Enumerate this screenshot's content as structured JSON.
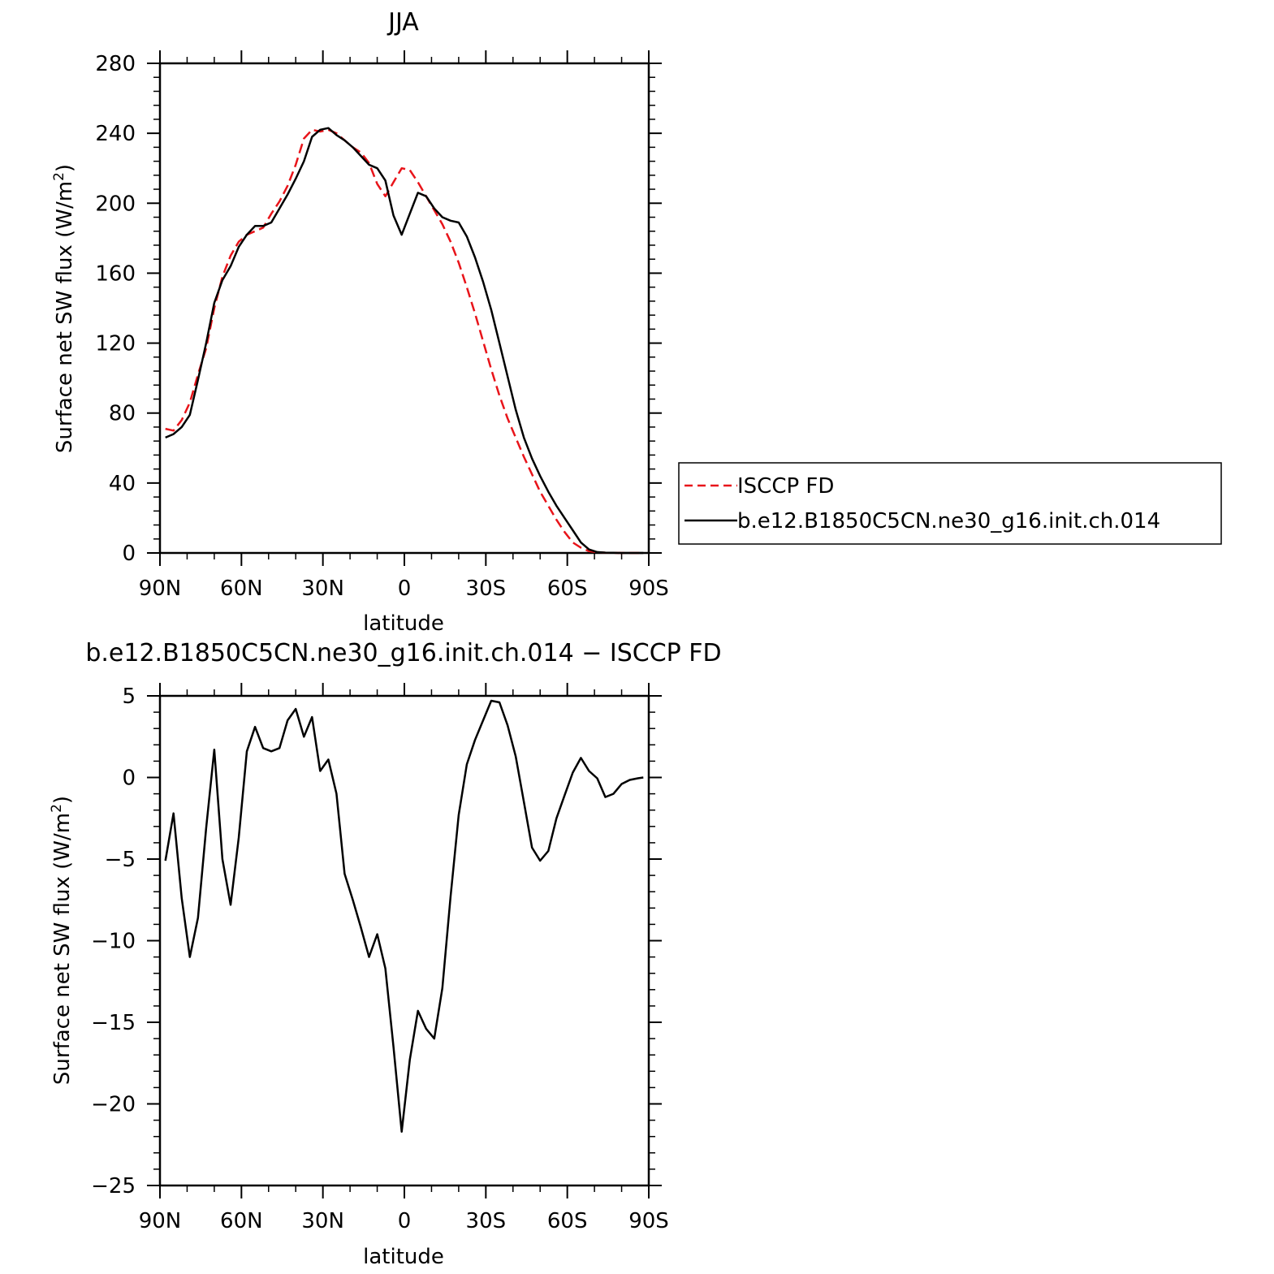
{
  "chart_data": [
    {
      "type": "line",
      "title": "JJA",
      "xlabel": "latitude",
      "ylabel_main": "Surface net SW flux (W/m",
      "ylabel_sup": "2",
      "ylabel_close": ")",
      "xlim": [
        90,
        -90
      ],
      "ylim": [
        0,
        280
      ],
      "xticks": [
        {
          "value": 90,
          "label": "90N"
        },
        {
          "value": 60,
          "label": "60N"
        },
        {
          "value": 30,
          "label": "30N"
        },
        {
          "value": 0,
          "label": "0"
        },
        {
          "value": -30,
          "label": "30S"
        },
        {
          "value": -60,
          "label": "60S"
        },
        {
          "value": -90,
          "label": "90S"
        }
      ],
      "yticks": [
        0,
        40,
        80,
        120,
        160,
        200,
        240,
        280
      ],
      "legend_position": "right",
      "series": [
        {
          "name": "ISCCP FD",
          "color": "#e8141a",
          "style": "dashed",
          "x": [
            88,
            85,
            82,
            79,
            76,
            73,
            70,
            67,
            64,
            61,
            58,
            55,
            52,
            49,
            46,
            43,
            40,
            37,
            34,
            31,
            28,
            25,
            22,
            19,
            16,
            13,
            10,
            7,
            4,
            1,
            -2,
            -5,
            -8,
            -11,
            -14,
            -17,
            -20,
            -23,
            -26,
            -29,
            -32,
            -35,
            -38,
            -41,
            -44,
            -47,
            -50,
            -53,
            -56,
            -59,
            -62,
            -65,
            -68,
            -71,
            -74,
            -77,
            -80,
            -83,
            -86,
            -88
          ],
          "y": [
            71,
            70,
            76,
            86,
            102,
            117,
            140,
            158,
            170,
            178,
            182,
            184,
            186,
            194,
            201,
            210,
            222,
            237,
            242,
            241,
            242,
            240,
            236,
            232,
            229,
            223,
            211,
            204,
            212,
            220,
            219,
            212,
            204,
            196,
            188,
            178,
            166,
            152,
            137,
            121,
            105,
            90,
            77,
            66,
            55,
            45,
            35,
            27,
            19,
            12,
            6,
            3,
            1,
            0.4,
            0.2,
            0.1,
            0,
            0,
            0,
            0
          ]
        },
        {
          "name": "b.e12.B1850C5CN.ne30_g16.init.ch.014",
          "color": "#000000",
          "style": "solid",
          "x": [
            88,
            85,
            82,
            79,
            76,
            73,
            70,
            67,
            64,
            61,
            58,
            55,
            52,
            49,
            46,
            43,
            40,
            37,
            34,
            31,
            28,
            25,
            22,
            19,
            16,
            13,
            10,
            7,
            4,
            1,
            -2,
            -5,
            -8,
            -11,
            -14,
            -17,
            -20,
            -23,
            -26,
            -29,
            -32,
            -35,
            -38,
            -41,
            -44,
            -47,
            -50,
            -53,
            -56,
            -59,
            -62,
            -65,
            -68,
            -71,
            -74,
            -77,
            -80,
            -83,
            -86,
            -88
          ],
          "y": [
            66,
            68,
            72,
            79,
            99,
            120,
            143,
            156,
            164,
            175,
            182,
            187,
            187,
            189,
            197,
            205,
            214,
            224,
            238,
            242,
            243,
            239,
            236,
            232,
            227,
            222,
            220,
            213,
            193,
            182,
            194,
            206,
            204,
            197,
            192,
            190,
            189,
            181,
            169,
            155,
            139,
            120,
            101,
            82,
            66,
            54,
            44,
            35,
            27,
            20,
            13,
            6,
            2,
            0.5,
            0.2,
            0.1,
            0,
            0,
            0,
            0
          ]
        }
      ]
    },
    {
      "type": "line",
      "title": "b.e12.B1850C5CN.ne30_g16.init.ch.014 − ISCCP FD",
      "xlabel": "latitude",
      "ylabel_main": "Surface net SW flux (W/m",
      "ylabel_sup": "2",
      "ylabel_close": ")",
      "xlim": [
        90,
        -90
      ],
      "ylim": [
        -25,
        5
      ],
      "xticks": [
        {
          "value": 90,
          "label": "90N"
        },
        {
          "value": 60,
          "label": "60N"
        },
        {
          "value": 30,
          "label": "30N"
        },
        {
          "value": 0,
          "label": "0"
        },
        {
          "value": -30,
          "label": "30S"
        },
        {
          "value": -60,
          "label": "60S"
        },
        {
          "value": -90,
          "label": "90S"
        }
      ],
      "yticks": [
        {
          "value": 5,
          "label": "5"
        },
        {
          "value": 0,
          "label": "0"
        },
        {
          "value": -5,
          "label": "−5"
        },
        {
          "value": -10,
          "label": "−10"
        },
        {
          "value": -15,
          "label": "−15"
        },
        {
          "value": -20,
          "label": "−20"
        },
        {
          "value": -25,
          "label": "−25"
        }
      ],
      "series": [
        {
          "color": "#000000",
          "style": "solid",
          "x": [
            88,
            85,
            82,
            79,
            76,
            73,
            70,
            67,
            64,
            61,
            58,
            55,
            52,
            49,
            46,
            43,
            40,
            37,
            34,
            31,
            28,
            25,
            22,
            19,
            16,
            13,
            10,
            7,
            4,
            1,
            -2,
            -5,
            -8,
            -11,
            -14,
            -17,
            -20,
            -23,
            -26,
            -29,
            -32,
            -35,
            -38,
            -41,
            -44,
            -47,
            -50,
            -53,
            -56,
            -59,
            -62,
            -65,
            -68,
            -71,
            -74,
            -77,
            -80,
            -83,
            -86,
            -88
          ],
          "y": [
            -5.1,
            -2.2,
            -7.4,
            -11.0,
            -8.6,
            -3.1,
            1.7,
            -5.0,
            -7.8,
            -3.7,
            1.6,
            3.1,
            1.8,
            1.6,
            1.8,
            3.5,
            4.2,
            2.5,
            3.7,
            0.4,
            1.1,
            -1.0,
            -5.9,
            -7.5,
            -9.2,
            -11.0,
            -9.6,
            -11.7,
            -16.5,
            -21.7,
            -17.3,
            -14.3,
            -15.4,
            -16.0,
            -12.9,
            -7.3,
            -2.3,
            0.8,
            2.3,
            3.5,
            4.7,
            4.6,
            3.2,
            1.3,
            -1.5,
            -4.3,
            -5.1,
            -4.5,
            -2.5,
            -1.1,
            0.3,
            1.2,
            0.4,
            -0.05,
            -1.2,
            -1.0,
            -0.4,
            -0.15,
            -0.05,
            0
          ]
        }
      ]
    }
  ],
  "legend": {
    "items": [
      "ISCCP FD",
      "b.e12.B1850C5CN.ne30_g16.init.ch.014"
    ]
  }
}
